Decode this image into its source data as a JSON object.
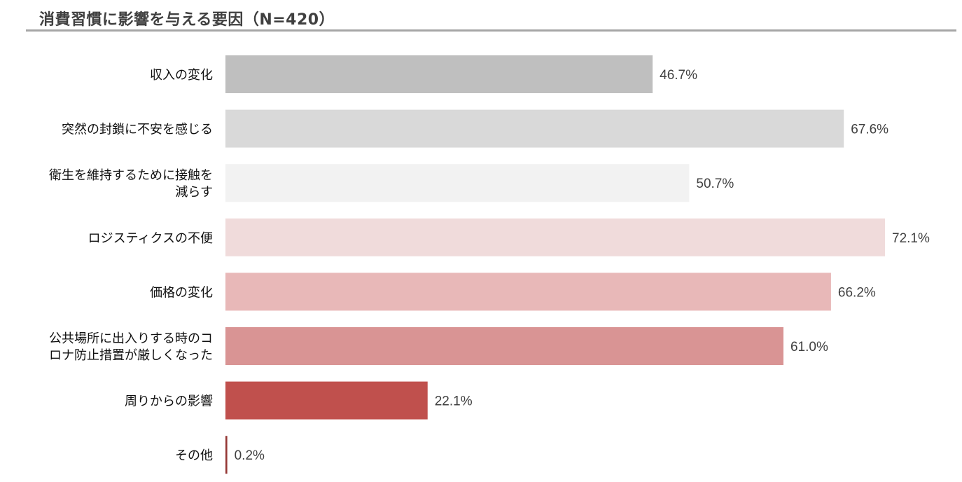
{
  "chart_data": {
    "type": "bar",
    "orientation": "horizontal",
    "title": "消費習慣に影響を与える要因（N=420）",
    "categories": [
      [
        "収入の変化"
      ],
      [
        "突然の封鎖に不安を感じる"
      ],
      [
        "衛生を維持するために接触を",
        "減らす"
      ],
      [
        "ロジスティクスの不便"
      ],
      [
        "価格の変化"
      ],
      [
        "公共場所に出入りする時のコ",
        "ロナ防止措置が厳しくなった"
      ],
      [
        "周りからの影響"
      ],
      [
        "その他"
      ]
    ],
    "values": [
      46.7,
      67.6,
      50.7,
      72.1,
      66.2,
      61.0,
      22.1,
      0.2
    ],
    "value_labels": [
      "46.7%",
      "67.6%",
      "50.7%",
      "72.1%",
      "66.2%",
      "61.0%",
      "22.1%",
      "0.2%"
    ],
    "colors": [
      "#bfbfbf",
      "#d9d9d9",
      "#f2f2f2",
      "#f0dbdb",
      "#e8b8b8",
      "#d99494",
      "#c0504d",
      "#943634"
    ],
    "xlim": [
      0,
      75
    ],
    "grid": false,
    "legend": "none"
  }
}
